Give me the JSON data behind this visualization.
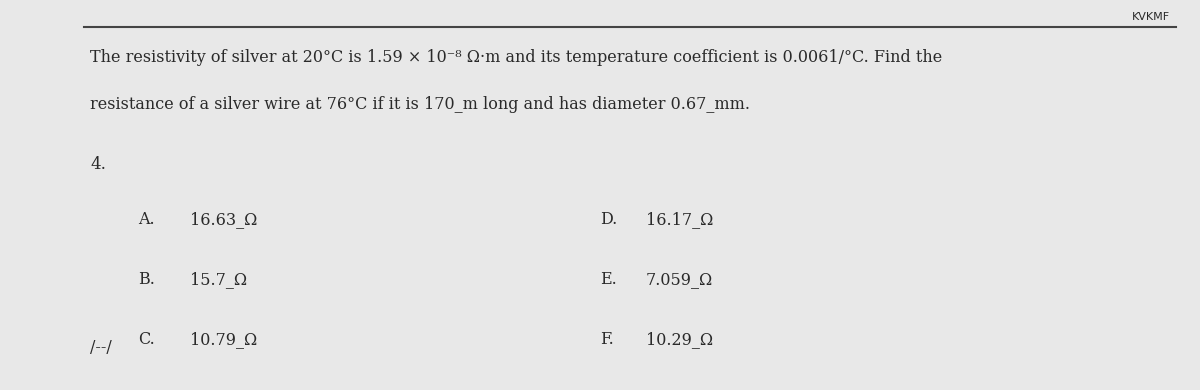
{
  "watermark": "KVKMF",
  "question_number": "4.",
  "question_text_line1": "The resistivity of silver at 20°C is 1.59 × 10⁻⁸ Ω·m and its temperature coefficient is 0.0061/°C. Find the",
  "question_text_line2": "resistance of a silver wire at 76°C if it is 170_m long and has diameter 0.67_mm.",
  "choices_left": [
    [
      "A.",
      "16.63_Ω"
    ],
    [
      "B.",
      "15.7_Ω"
    ],
    [
      "C.",
      "10.79_Ω"
    ]
  ],
  "choices_right": [
    [
      "D.",
      "16.17_Ω"
    ],
    [
      "E.",
      "7.059_Ω"
    ],
    [
      "F.",
      "10.29_Ω"
    ]
  ],
  "footer": "/--/",
  "bg_color": "#e8e8e8",
  "text_color": "#2a2a2a",
  "line_color": "#444444"
}
